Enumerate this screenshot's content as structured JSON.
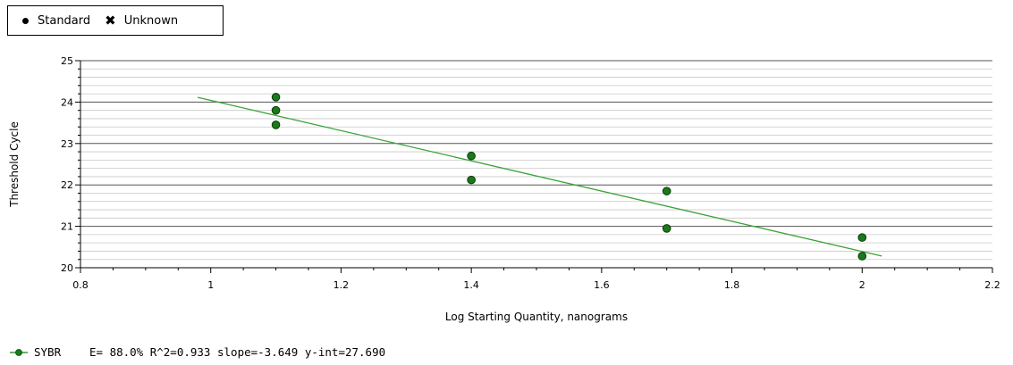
{
  "legend": {
    "standard_label": "Standard",
    "unknown_label": "Unknown",
    "standard_icon": "filled-circle-icon",
    "unknown_icon": "x-cross-icon"
  },
  "chart_data": {
    "type": "scatter",
    "xlabel": "Log Starting Quantity, nanograms",
    "ylabel": "Threshold Cycle",
    "xlim": [
      0.8,
      2.2
    ],
    "ylim": [
      20,
      25
    ],
    "x_ticks": [
      "0.8",
      "1",
      "1.2",
      "1.4",
      "1.6",
      "1.8",
      "2",
      "2.2"
    ],
    "y_ticks": [
      "20",
      "21",
      "22",
      "23",
      "24",
      "25"
    ],
    "grid": true,
    "legend_position": "top-left",
    "series": [
      {
        "name": "Standard",
        "color": "#1a7a1a",
        "points": [
          {
            "x": 1.1,
            "y": 24.12
          },
          {
            "x": 1.1,
            "y": 23.8
          },
          {
            "x": 1.1,
            "y": 23.45
          },
          {
            "x": 1.4,
            "y": 22.7
          },
          {
            "x": 1.4,
            "y": 22.12
          },
          {
            "x": 1.7,
            "y": 21.85
          },
          {
            "x": 1.7,
            "y": 20.95
          },
          {
            "x": 2.0,
            "y": 20.73
          },
          {
            "x": 2.0,
            "y": 20.28
          }
        ]
      }
    ],
    "fit_line": {
      "color": "#3aa33a",
      "x_start": 0.98,
      "x_end": 2.03,
      "slope": -3.649,
      "intercept": 27.69
    }
  },
  "stats": {
    "series_name": "SYBR",
    "text": "E= 88.0% R^2=0.933 slope=-3.649 y-int=27.690"
  }
}
